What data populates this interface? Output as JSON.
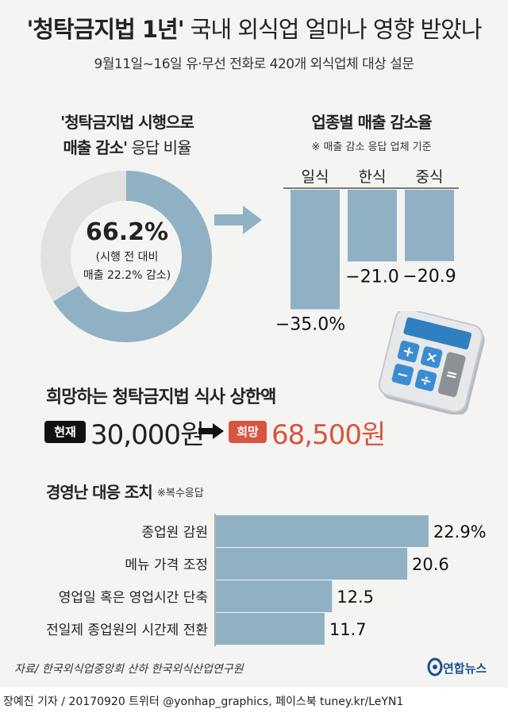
{
  "title": {
    "main": "'청탁금지법 1년'",
    "rest": " 국내 외식업 얼마나 영향 받았나"
  },
  "subtitle": "9월11일~16일 유·무선 전화로 420개 외식업체 대상 설문",
  "colors": {
    "bar": "#8fb1c3",
    "donut_rest": "#e1e1e1",
    "accent": "#d8553f",
    "background": "#f4f4f2"
  },
  "chart_data": [
    {
      "type": "pie",
      "title_line1": "'청탁금지법 시행으로",
      "title_line2_bold": "매출 감소'",
      "title_line2_rest": " 응답 비율",
      "values": [
        66.2,
        33.8
      ],
      "label": "66.2%",
      "note_line1": "(시행 전 대비",
      "note_line2": "매출 22.2% 감소)"
    },
    {
      "type": "bar",
      "title": "업종별 매출 감소율",
      "note": "※ 매출 감소 응답 업체 기준",
      "categories": [
        "일식",
        "한식",
        "중식"
      ],
      "values": [
        -35.0,
        -21.0,
        -20.9
      ],
      "labels": [
        "−35.0%",
        "−21.0",
        "−20.9"
      ]
    },
    {
      "type": "bar",
      "orientation": "horizontal",
      "title": "경영난 대응 조치",
      "note": "※복수응답",
      "categories": [
        "종업원 감원",
        "메뉴 가격 조정",
        "영업일 혹은 영업시간 단축",
        "전일제 종업원의 시간제 전환"
      ],
      "values": [
        22.9,
        20.6,
        12.5,
        11.7
      ],
      "labels": [
        "22.9%",
        "20.6",
        "12.5",
        "11.7"
      ]
    }
  ],
  "wish": {
    "title": "희망하는 청탁금지법 식사 상한액",
    "now_badge": "현재",
    "now_price": "30,000원",
    "hope_badge": "희망",
    "hope_price": "68,500원"
  },
  "calculator": {
    "keys": [
      "+",
      "×",
      "−",
      "÷",
      "="
    ]
  },
  "source": "자료/ 한국외식업중앙회 산하 한국외식산업연구원",
  "logo": "연합뉴스",
  "credit": "장예진 기자 / 20170920 트위터 @yonhap_graphics, 페이스북 tuney.kr/LeYN1"
}
